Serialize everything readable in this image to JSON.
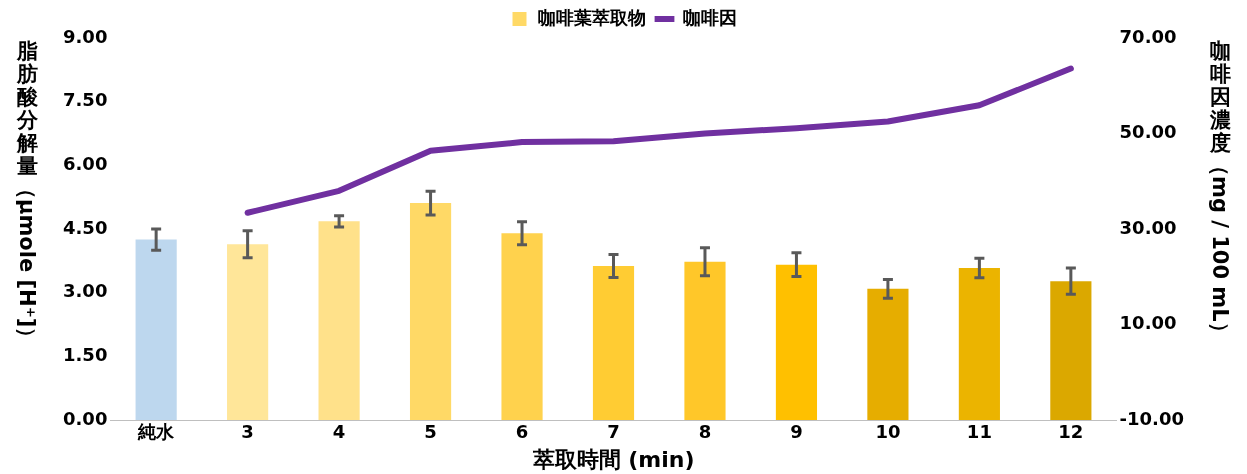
{
  "chart_data": {
    "type": "bar",
    "xlabel": "萃取時間 (min)",
    "ylabel": "脂肪酸分解量（μmole [H⁺]）",
    "y2label": "咖啡因濃度（mg / 100 mL）",
    "categories": [
      "純水",
      "3",
      "4",
      "5",
      "6",
      "7",
      "8",
      "9",
      "10",
      "11",
      "12"
    ],
    "series": [
      {
        "name": "咖啡葉萃取物",
        "color": "#ffd966",
        "colors": [
          "#bdd7ee",
          "#ffe699",
          "#ffe18a",
          "#ffd966",
          "#ffd24d",
          "#ffcc33",
          "#ffc729",
          "#ffc000",
          "#e6ad00",
          "#ebb400",
          "#dba800"
        ],
        "values": [
          4.25,
          4.14,
          4.68,
          5.11,
          4.4,
          3.63,
          3.73,
          3.66,
          3.09,
          3.58,
          3.27
        ],
        "errors": [
          0.25,
          0.32,
          0.13,
          0.28,
          0.27,
          0.27,
          0.33,
          0.28,
          0.22,
          0.23,
          0.31
        ]
      },
      {
        "name": "咖啡因",
        "type": "line",
        "axis": "y2",
        "color": "#7030a0",
        "values": [
          null,
          33.4,
          38.0,
          46.4,
          48.2,
          48.4,
          50.0,
          51.1,
          52.5,
          55.9,
          63.6
        ]
      }
    ],
    "ylim": [
      0,
      9
    ],
    "yticks": [
      {
        "value": 0,
        "label": "0.00"
      },
      {
        "value": 1.5,
        "label": "1.50"
      },
      {
        "value": 3,
        "label": "3.00"
      },
      {
        "value": 4.5,
        "label": "4.50"
      },
      {
        "value": 6,
        "label": "6.00"
      },
      {
        "value": 7.5,
        "label": "7.50"
      },
      {
        "value": 9,
        "label": "9.00"
      }
    ],
    "y2lim": [
      -10,
      70
    ],
    "y2ticks": [
      {
        "value": -10,
        "label": "-10.00"
      },
      {
        "value": 10,
        "label": "10.00"
      },
      {
        "value": 30,
        "label": "30.00"
      },
      {
        "value": 50,
        "label": "50.00"
      },
      {
        "value": 70,
        "label": "70.00"
      }
    ],
    "legend": "top",
    "marker": "none"
  }
}
